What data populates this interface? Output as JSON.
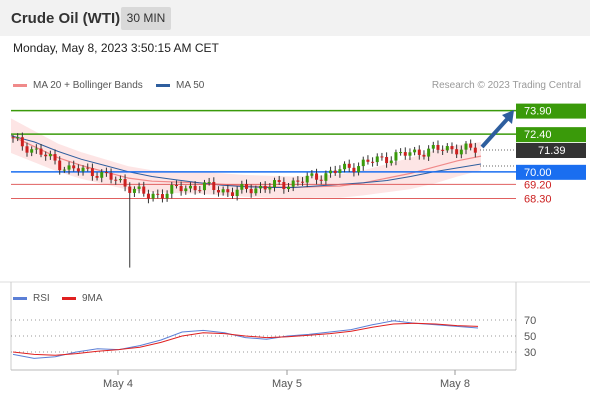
{
  "header": {
    "title": "Crude Oil (WTI)",
    "timeframe": "30 MIN",
    "datetime": "Monday, May 8, 2023 3:50:15 AM CET"
  },
  "legend": {
    "bollinger_label": "MA 20 + Bollinger Bands",
    "ma50_label": "MA 50",
    "credit": "Research © 2023 Trading Central"
  },
  "colors": {
    "bollinger": "#f08a8a",
    "ma50": "#2e5e9e",
    "resistance": "#3a9a0a",
    "support": "#1a6ef0",
    "support_secondary": "#e06060",
    "candle_up": "#3a9a0a",
    "candle_down": "#cc2020",
    "rsi": "#5b7fd6",
    "rsi_ma": "#e02020"
  },
  "chart_data": [
    {
      "type": "candlestick",
      "x_labels": [
        "May 4",
        "May 5",
        "May 8"
      ],
      "levels": [
        {
          "label": "73.90",
          "value": 73.9,
          "kind": "resistance"
        },
        {
          "label": "72.40",
          "value": 72.4,
          "kind": "resistance"
        },
        {
          "label": "71.39",
          "value": 71.39,
          "kind": "last"
        },
        {
          "label": "70.00",
          "value": 70.0,
          "kind": "pivot"
        },
        {
          "label": "69.20",
          "value": 69.2,
          "kind": "support"
        },
        {
          "label": "68.30",
          "value": 68.3,
          "kind": "support"
        }
      ],
      "series": [
        {
          "name": "MA 20 + Bollinger Bands",
          "values": [
            72.3,
            71.6,
            70.9,
            70.4,
            70.0,
            69.6,
            69.4,
            69.35,
            69.3,
            69.2,
            69.1,
            69.05,
            69.0,
            69.05,
            69.1,
            69.3,
            69.6,
            69.9,
            70.3,
            70.7,
            71.0
          ]
        },
        {
          "name": "MA 50",
          "values": [
            72.3,
            71.9,
            71.3,
            70.8,
            70.4,
            70.0,
            69.7,
            69.5,
            69.3,
            69.15,
            69.05,
            69.0,
            69.0,
            69.1,
            69.2,
            69.3,
            69.45,
            69.7,
            70.0,
            70.25,
            70.5
          ]
        }
      ],
      "candles": [
        72.0,
        71.2,
        70.2,
        70.0,
        69.3,
        68.4,
        68.9,
        69.1,
        68.7,
        69.0,
        69.2,
        69.6,
        70.1,
        70.6,
        71.0,
        71.3,
        71.5,
        71.4
      ]
    },
    {
      "type": "line",
      "title": "RSI",
      "x_labels": [
        "May 4",
        "May 5",
        "May 8"
      ],
      "y_ticks": [
        "70",
        "50",
        "30"
      ],
      "ylim": [
        20,
        80
      ],
      "series": [
        {
          "name": "RSI",
          "values": [
            27,
            22,
            24,
            30,
            34,
            33,
            38,
            45,
            55,
            57,
            54,
            48,
            46,
            50,
            52,
            55,
            58,
            64,
            69,
            66,
            64,
            62,
            60
          ]
        },
        {
          "name": "9MA",
          "values": [
            30,
            27,
            26,
            28,
            31,
            33,
            36,
            42,
            50,
            54,
            53,
            50,
            48,
            49,
            51,
            53,
            56,
            61,
            65,
            66,
            65,
            63,
            62
          ]
        }
      ]
    }
  ]
}
